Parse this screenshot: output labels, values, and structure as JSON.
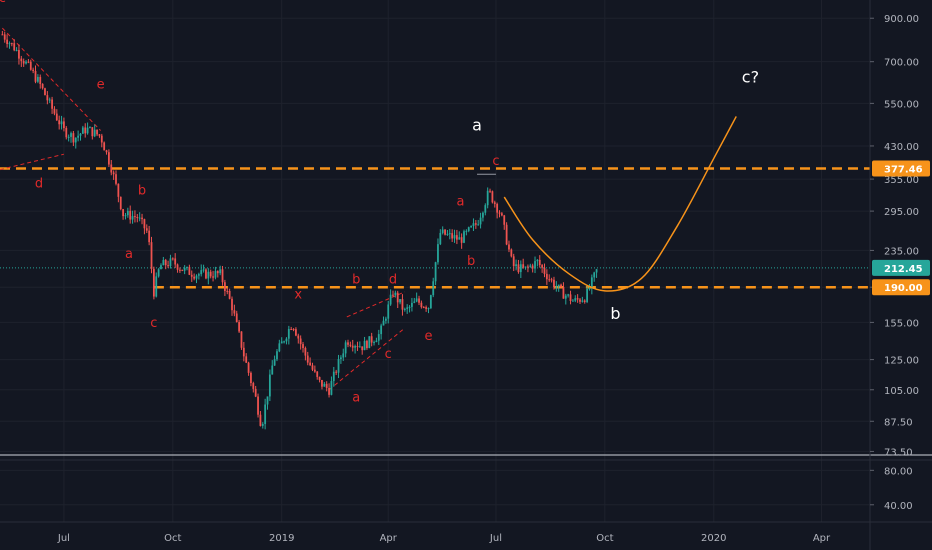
{
  "chart_data": {
    "type": "candlestick",
    "price_scale": "log",
    "y_ticks": [
      "900.00",
      "700.00",
      "550.00",
      "430.00",
      "355.00",
      "295.00",
      "235.00",
      "190.00",
      "155.00",
      "125.00",
      "105.00",
      "87.50",
      "73.50"
    ],
    "y_tick_values": [
      900,
      700,
      550,
      430,
      355,
      295,
      235,
      190,
      155,
      125,
      105,
      87.5,
      73.5
    ],
    "ylim": [
      72,
      1000
    ],
    "x_ticks": [
      "Jul",
      "Oct",
      "2019",
      "Apr",
      "Jul",
      "Oct",
      "2020",
      "Apr"
    ],
    "x_tick_dates": [
      "2018-07-01",
      "2018-10-01",
      "2019-01-01",
      "2019-04-01",
      "2019-07-01",
      "2019-10-01",
      "2020-01-01",
      "2020-04-01"
    ],
    "xlim": [
      "2018-05-08",
      "2020-05-12"
    ],
    "candles_close": [
      [
        "2018-05-10",
        820
      ],
      [
        "2018-05-20",
        760
      ],
      [
        "2018-06-01",
        680
      ],
      [
        "2018-06-10",
        620
      ],
      [
        "2018-06-20",
        540
      ],
      [
        "2018-07-01",
        470
      ],
      [
        "2018-07-10",
        450
      ],
      [
        "2018-07-20",
        475
      ],
      [
        "2018-08-01",
        455
      ],
      [
        "2018-08-10",
        380
      ],
      [
        "2018-08-20",
        290
      ],
      [
        "2018-09-01",
        285
      ],
      [
        "2018-09-10",
        260
      ],
      [
        "2018-09-15",
        185
      ],
      [
        "2018-09-20",
        215
      ],
      [
        "2018-10-01",
        220
      ],
      [
        "2018-10-10",
        210
      ],
      [
        "2018-10-20",
        205
      ],
      [
        "2018-11-01",
        205
      ],
      [
        "2018-11-10",
        205
      ],
      [
        "2018-11-20",
        170
      ],
      [
        "2018-12-01",
        125
      ],
      [
        "2018-12-10",
        100
      ],
      [
        "2018-12-15",
        85
      ],
      [
        "2018-12-25",
        125
      ],
      [
        "2019-01-10",
        155
      ],
      [
        "2019-01-20",
        130
      ],
      [
        "2019-02-01",
        110
      ],
      [
        "2019-02-10",
        105
      ],
      [
        "2019-02-25",
        140
      ],
      [
        "2019-03-10",
        135
      ],
      [
        "2019-03-25",
        145
      ],
      [
        "2019-04-05",
        185
      ],
      [
        "2019-04-15",
        165
      ],
      [
        "2019-04-25",
        175
      ],
      [
        "2019-05-05",
        170
      ],
      [
        "2019-05-15",
        260
      ],
      [
        "2019-06-01",
        250
      ],
      [
        "2019-06-15",
        275
      ],
      [
        "2019-06-25",
        330
      ],
      [
        "2019-07-05",
        290
      ],
      [
        "2019-07-15",
        215
      ],
      [
        "2019-07-25",
        210
      ],
      [
        "2019-08-05",
        220
      ],
      [
        "2019-08-15",
        200
      ],
      [
        "2019-08-25",
        185
      ],
      [
        "2019-09-05",
        175
      ],
      [
        "2019-09-15",
        180
      ],
      [
        "2019-09-25",
        212
      ]
    ],
    "current_price": {
      "value": 212.45,
      "label": "212.45",
      "color": "#26a69a"
    },
    "horizontal_levels": [
      {
        "value": 377.46,
        "label": "377.46",
        "color": "#f7931a"
      },
      {
        "value": 190.0,
        "label": "190.00",
        "color": "#f7931a"
      }
    ],
    "projection_curve": {
      "color": "#f7931a",
      "points": [
        [
          "2019-07-08",
          320
        ],
        [
          "2019-08-01",
          250
        ],
        [
          "2019-09-01",
          205
        ],
        [
          "2019-10-01",
          186
        ],
        [
          "2019-11-01",
          200
        ],
        [
          "2019-12-01",
          270
        ],
        [
          "2020-01-01",
          400
        ],
        [
          "2020-01-20",
          510
        ]
      ]
    },
    "trend_lines": [
      {
        "from": [
          "2018-05-10",
          850
        ],
        "to": [
          "2018-08-01",
          470
        ],
        "color": "#e02a2a"
      },
      {
        "from": [
          "2018-05-08",
          375
        ],
        "to": [
          "2018-07-01",
          410
        ],
        "color": "#e02a2a"
      },
      {
        "from": [
          "2019-02-10",
          105
        ],
        "to": [
          "2019-04-15",
          150
        ],
        "color": "#e02a2a"
      },
      {
        "from": [
          "2019-02-25",
          160
        ],
        "to": [
          "2019-04-15",
          185
        ],
        "color": "#e02a2a"
      },
      {
        "from": [
          "2019-06-15",
          365
        ],
        "to": [
          "2019-07-01",
          365
        ],
        "color": "#9598a1"
      }
    ],
    "wave_labels_red": [
      {
        "text": "c",
        "date": "2018-05-10",
        "price": 990
      },
      {
        "text": "e",
        "date": "2018-08-01",
        "price": 600
      },
      {
        "text": "d",
        "date": "2018-06-10",
        "price": 338
      },
      {
        "text": "b",
        "date": "2018-09-05",
        "price": 325
      },
      {
        "text": "a",
        "date": "2018-08-25",
        "price": 225
      },
      {
        "text": "c",
        "date": "2018-09-15",
        "price": 151
      },
      {
        "text": "x",
        "date": "2019-01-15",
        "price": 178
      },
      {
        "text": "b",
        "date": "2019-03-05",
        "price": 194
      },
      {
        "text": "d",
        "date": "2019-04-05",
        "price": 194
      },
      {
        "text": "e",
        "date": "2019-05-05",
        "price": 140
      },
      {
        "text": "c",
        "date": "2019-04-01",
        "price": 126
      },
      {
        "text": "a",
        "date": "2019-03-05",
        "price": 98
      },
      {
        "text": "a",
        "date": "2019-06-01",
        "price": 305
      },
      {
        "text": "c",
        "date": "2019-07-01",
        "price": 385
      },
      {
        "text": "b",
        "date": "2019-06-10",
        "price": 216
      }
    ],
    "wave_labels_white": [
      {
        "text": "a",
        "date": "2019-06-15",
        "price": 470
      },
      {
        "text": "b",
        "date": "2019-10-10",
        "price": 158
      },
      {
        "text": "c?",
        "date": "2020-02-01",
        "price": 620
      }
    ],
    "indicator_pane": {
      "y_ticks": [
        "80.00",
        "40.00"
      ],
      "y_tick_values": [
        80,
        40
      ],
      "ylim": [
        20,
        92
      ]
    }
  }
}
